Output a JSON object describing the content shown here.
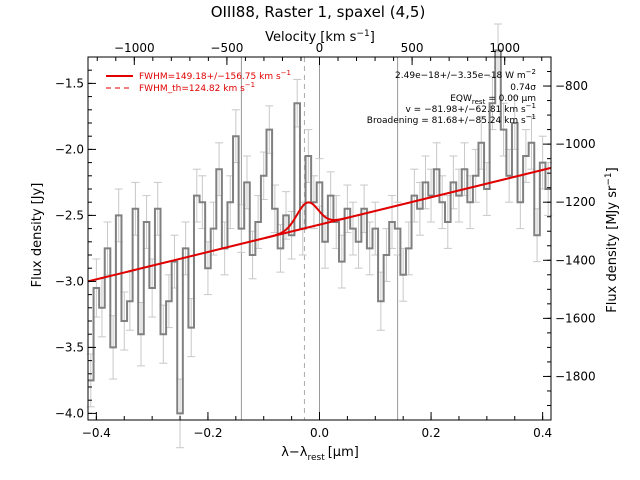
{
  "chart_data": {
    "type": "line",
    "title": "OIII88, Raster 1, spaxel (4,5)",
    "xlabel": "λ−λ",
    "xlabel_sub": "rest",
    "xlabel_unit": "[μm]",
    "ylabel": "Flux density [Jy]",
    "ylabel_right": "Flux density [MJy sr",
    "ylabel_right_exp": "−1",
    "ylabel_right_close": "]",
    "xlabel_top": "Velocity [km s",
    "xlabel_top_exp": "−1",
    "xlabel_top_close": "]",
    "xlim": [
      -0.415,
      0.415
    ],
    "ylim": [
      -4.05,
      -1.3
    ],
    "right_ylim": [
      -1950,
      -700
    ],
    "top_xlim": [
      -1250,
      1250
    ],
    "x_ticks": [
      -0.4,
      -0.2,
      0.0,
      0.2,
      0.4
    ],
    "x_tick_labels": [
      "−0.4",
      "−0.2",
      "0.0",
      "0.2",
      "0.4"
    ],
    "y_ticks": [
      -4.0,
      -3.5,
      -3.0,
      -2.5,
      -2.0,
      -1.5
    ],
    "y_tick_labels": [
      "−4.0",
      "−3.5",
      "−3.0",
      "−2.5",
      "−2.0",
      "−1.5"
    ],
    "right_ticks": [
      -1800,
      -1600,
      -1400,
      -1200,
      -1000,
      -800
    ],
    "right_tick_labels": [
      "−1800",
      "−1600",
      "−1400",
      "−1200",
      "−1000",
      "−800"
    ],
    "top_ticks": [
      -1000,
      -500,
      0,
      500,
      1000
    ],
    "top_tick_labels": [
      "−1000",
      "−500",
      "0",
      "500",
      "1000"
    ],
    "vertical_lines": [
      -0.14,
      0.0,
      0.14
    ],
    "dashed_line_x": -0.027,
    "legend": {
      "fwhm": "FWHM=149.18+/−156.75 km s",
      "fwhm_th": "FWHM_th=124.82 km s",
      "exp": "−1"
    },
    "annotations": {
      "flux": "2.49e−18+/−3.35e−18 W m",
      "flux_exp": "−2",
      "sigma": "0.74σ",
      "eqw": "EQW",
      "eqw_sub": "rest",
      "eqw_val": " = 0.00 μm",
      "v": "v = −81.98+/−62.81 km s",
      "v_exp": "−1",
      "broad": "Broadening = 81.68+/−85.24 km s",
      "broad_exp": "−1"
    },
    "fit": {
      "baseline_start": [
        -0.415,
        -3.0
      ],
      "baseline_end": [
        0.415,
        -2.14
      ],
      "gaussian_center": -0.0215,
      "gaussian_amp": 0.19,
      "gaussian_sigma": 0.019
    },
    "series": [
      {
        "x": [
          -0.41,
          -0.4,
          -0.39,
          -0.38,
          -0.37,
          -0.36,
          -0.35,
          -0.34,
          -0.33,
          -0.32,
          -0.31,
          -0.3,
          -0.29,
          -0.28,
          -0.27,
          -0.26,
          -0.25,
          -0.24,
          -0.23,
          -0.22,
          -0.21,
          -0.2,
          -0.19,
          -0.18,
          -0.17,
          -0.16,
          -0.15,
          -0.14,
          -0.13,
          -0.12,
          -0.11,
          -0.1,
          -0.09,
          -0.08,
          -0.07,
          -0.06,
          -0.05,
          -0.04,
          -0.03,
          -0.02,
          -0.01,
          0.0,
          0.01,
          0.02,
          0.03,
          0.04,
          0.05,
          0.06,
          0.07,
          0.08,
          0.09,
          0.1,
          0.11,
          0.12,
          0.13,
          0.14,
          0.15,
          0.16,
          0.17,
          0.18,
          0.19,
          0.2,
          0.21,
          0.22,
          0.23,
          0.24,
          0.25,
          0.26,
          0.27,
          0.28,
          0.29,
          0.3,
          0.31,
          0.32,
          0.33,
          0.34,
          0.35,
          0.36,
          0.37,
          0.38,
          0.39,
          0.4,
          0.41
        ],
        "y": [
          -3.75,
          -3.05,
          -3.2,
          -2.75,
          -3.5,
          -2.5,
          -3.3,
          -3.15,
          -2.45,
          -3.4,
          -2.55,
          -3.05,
          -2.45,
          -3.4,
          -3.15,
          -2.85,
          -4.0,
          -2.75,
          -3.35,
          -2.35,
          -2.4,
          -2.9,
          -2.6,
          -2.15,
          -2.75,
          -2.4,
          -1.9,
          -2.6,
          -2.25,
          -2.8,
          -2.55,
          -2.2,
          -1.85,
          -2.45,
          -2.75,
          -2.5,
          -2.65,
          -1.65,
          -2.6,
          -2.05,
          -2.4,
          -2.25,
          -2.7,
          -2.35,
          -2.55,
          -2.85,
          -2.45,
          -2.6,
          -2.7,
          -2.45,
          -2.75,
          -2.6,
          -3.15,
          -2.8,
          -2.55,
          -2.6,
          -2.95,
          -2.75,
          -2.35,
          -2.45,
          -2.25,
          -2.35,
          -2.15,
          -2.4,
          -2.55,
          -2.25,
          -2.35,
          -2.15,
          -2.4,
          -2.2,
          -1.95,
          -2.3,
          -1.65,
          -1.25,
          -1.85,
          -2.2,
          -1.8,
          -2.4,
          -2.05,
          -1.95,
          -2.65,
          -2.1,
          -2.3
        ],
        "yerr": [
          0.2,
          0.22,
          0.22,
          0.2,
          0.24,
          0.2,
          0.22,
          0.22,
          0.2,
          0.24,
          0.2,
          0.22,
          0.2,
          0.22,
          0.2,
          0.2,
          0.26,
          0.2,
          0.22,
          0.2,
          0.2,
          0.2,
          0.2,
          0.2,
          0.2,
          0.2,
          0.2,
          0.18,
          0.2,
          0.18,
          0.2,
          0.18,
          0.18,
          0.18,
          0.18,
          0.18,
          0.18,
          0.18,
          0.2,
          0.2,
          0.2,
          0.18,
          0.2,
          0.18,
          0.2,
          0.2,
          0.18,
          0.2,
          0.2,
          0.18,
          0.2,
          0.2,
          0.22,
          0.2,
          0.2,
          0.2,
          0.2,
          0.2,
          0.2,
          0.2,
          0.2,
          0.2,
          0.2,
          0.2,
          0.2,
          0.2,
          0.2,
          0.2,
          0.2,
          0.2,
          0.2,
          0.2,
          0.2,
          0.2,
          0.2,
          0.2,
          0.2,
          0.2,
          0.2,
          0.2,
          0.2,
          0.2,
          0.2
        ]
      }
    ],
    "colors": {
      "data": "#808080",
      "error": "#c8c8c8",
      "fit": "#e00000",
      "vline": "#999999"
    }
  }
}
